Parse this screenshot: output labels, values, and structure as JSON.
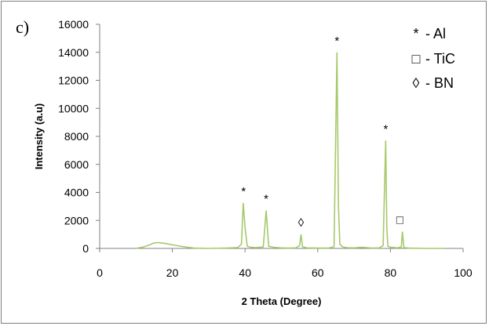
{
  "panel_label": "c)",
  "chart_data": {
    "type": "line",
    "xlabel": "2 Theta (Degree)",
    "ylabel": "Intensity (a.u)",
    "xlim": [
      0,
      100
    ],
    "ylim": [
      0,
      16000
    ],
    "xticks": [
      0,
      20,
      40,
      60,
      80,
      100
    ],
    "yticks": [
      0,
      2000,
      4000,
      6000,
      8000,
      10000,
      12000,
      14000,
      16000
    ],
    "grid": false,
    "line_color": "#a6c96a",
    "series": [
      {
        "x": [
          10,
          12,
          14,
          15,
          16,
          17,
          18,
          20,
          22,
          24,
          26,
          28,
          29,
          30,
          35,
          38,
          39,
          39.5,
          40,
          40.6,
          41.5,
          43,
          45,
          45.8,
          46.5,
          48,
          50,
          52,
          54,
          55,
          55.4,
          55.8,
          57,
          60,
          63,
          64.5,
          65.3,
          65.7,
          66.1,
          66.9,
          68,
          70,
          72,
          75,
          77,
          78,
          78.7,
          79,
          79.3,
          80.2,
          81,
          82,
          83,
          83.3,
          83.7,
          85,
          90,
          95
        ],
        "y": [
          0,
          100,
          280,
          400,
          420,
          400,
          350,
          260,
          170,
          90,
          30,
          10,
          5,
          0,
          30,
          60,
          300,
          3250,
          1500,
          150,
          80,
          60,
          100,
          2700,
          150,
          70,
          40,
          20,
          40,
          200,
          1000,
          120,
          40,
          20,
          30,
          120,
          14000,
          3000,
          300,
          100,
          50,
          40,
          80,
          30,
          40,
          200,
          7700,
          1500,
          150,
          80,
          60,
          40,
          100,
          1200,
          60,
          20,
          0,
          0
        ]
      }
    ],
    "peak_labels": [
      {
        "text": "*",
        "x": 39.6,
        "y": 3250
      },
      {
        "text": "*",
        "x": 45.8,
        "y": 2700
      },
      {
        "text": "◊",
        "x": 55.4,
        "y": 1000
      },
      {
        "text": "*",
        "x": 65.3,
        "y": 14000
      },
      {
        "text": "*",
        "x": 78.7,
        "y": 7700
      },
      {
        "text": "□",
        "x": 82.6,
        "y": 1200
      }
    ],
    "legend": {
      "placement": "top-right",
      "entries": [
        {
          "symbol": "*",
          "label": "- Al"
        },
        {
          "symbol": "□",
          "label": "- TiC"
        },
        {
          "symbol": "◊",
          "label": "- BN"
        }
      ]
    }
  }
}
